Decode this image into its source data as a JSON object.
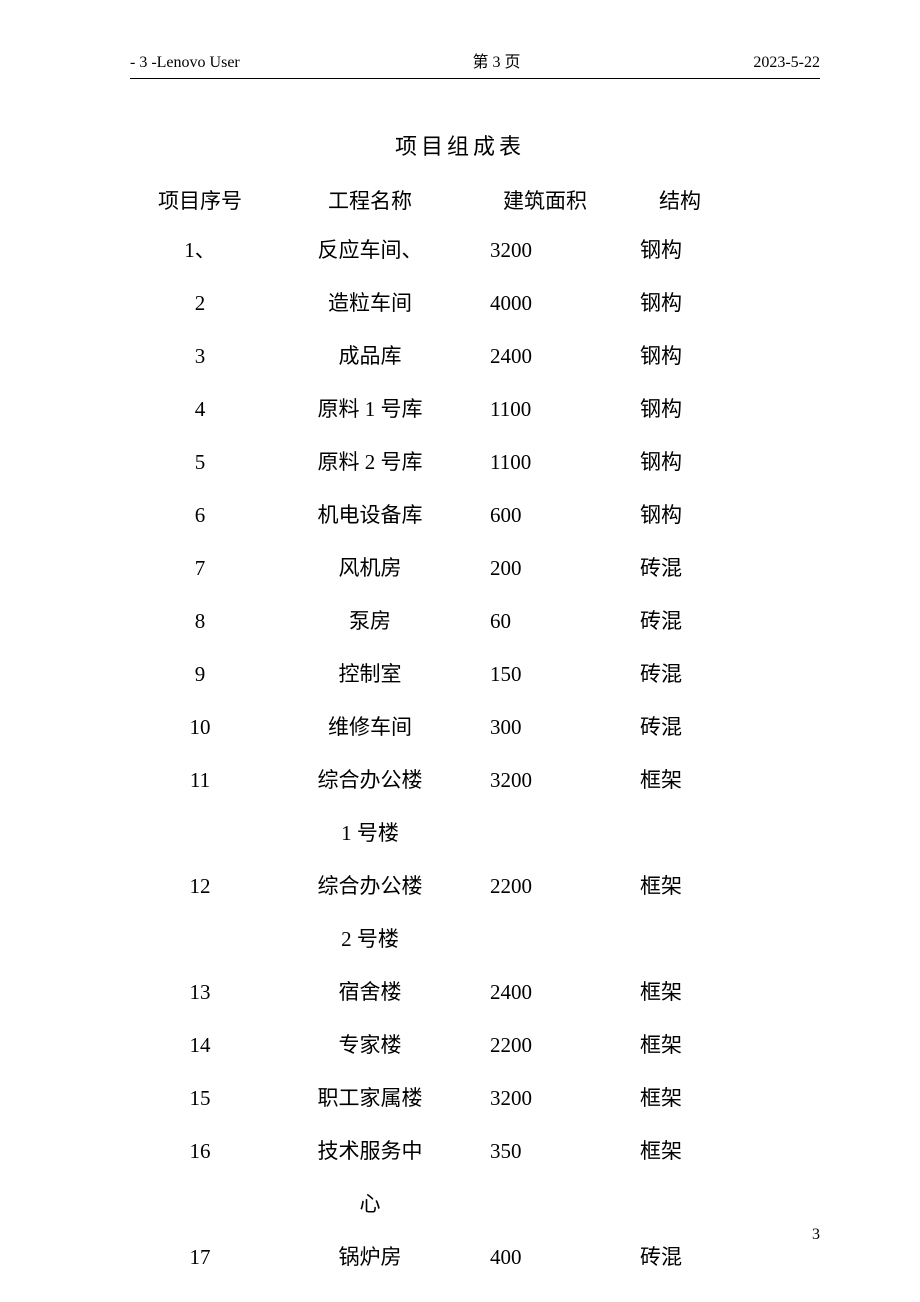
{
  "header": {
    "left": "- 3 -Lenovo User",
    "center": "第 3 页",
    "right": "2023-5-22"
  },
  "title": "项目组成表",
  "table": {
    "headers": {
      "seq": "项目序号",
      "name": "工程名称",
      "area": "建筑面积",
      "struct": "结构"
    },
    "rows": [
      {
        "seq": "1、",
        "name": "反应车间、",
        "name2": "",
        "area": "3200",
        "struct": "钢构"
      },
      {
        "seq": "2",
        "name": "造粒车间",
        "name2": "",
        "area": "4000",
        "struct": "钢构"
      },
      {
        "seq": "3",
        "name": "成品库",
        "name2": "",
        "area": "2400",
        "struct": "钢构"
      },
      {
        "seq": "4",
        "name": "原料 1 号库",
        "name2": "",
        "area": "1100",
        "struct": "钢构"
      },
      {
        "seq": "5",
        "name": "原料 2 号库",
        "name2": "",
        "area": "1100",
        "struct": "钢构"
      },
      {
        "seq": "6",
        "name": "机电设备库",
        "name2": "",
        "area": "600",
        "struct": "钢构"
      },
      {
        "seq": "7",
        "name": "风机房",
        "name2": "",
        "area": "200",
        "struct": "砖混"
      },
      {
        "seq": "8",
        "name": "泵房",
        "name2": "",
        "area": "60",
        "struct": "砖混"
      },
      {
        "seq": "9",
        "name": "控制室",
        "name2": "",
        "area": "150",
        "struct": "砖混"
      },
      {
        "seq": "10",
        "name": "维修车间",
        "name2": "",
        "area": "300",
        "struct": "砖混"
      },
      {
        "seq": "11",
        "name": "综合办公楼",
        "name2": "1 号楼",
        "area": "3200",
        "struct": "框架"
      },
      {
        "seq": "12",
        "name": "综合办公楼",
        "name2": "2 号楼",
        "area": "2200",
        "struct": "框架"
      },
      {
        "seq": "13",
        "name": "宿舍楼",
        "name2": "",
        "area": "2400",
        "struct": "框架"
      },
      {
        "seq": "14",
        "name": "专家楼",
        "name2": "",
        "area": "2200",
        "struct": "框架"
      },
      {
        "seq": "15",
        "name": "职工家属楼",
        "name2": "",
        "area": "3200",
        "struct": "框架"
      },
      {
        "seq": "16",
        "name": "技术服务中",
        "name2": "心",
        "area": "350",
        "struct": "框架"
      },
      {
        "seq": "17",
        "name": "锅炉房",
        "name2": "",
        "area": "400",
        "struct": "砖混"
      }
    ]
  },
  "page_number": "3",
  "style": {
    "background_color": "#ffffff",
    "text_color": "#000000",
    "header_fontsize": 16,
    "title_fontsize": 22,
    "body_fontsize": 21,
    "header_border_color": "#000000"
  }
}
